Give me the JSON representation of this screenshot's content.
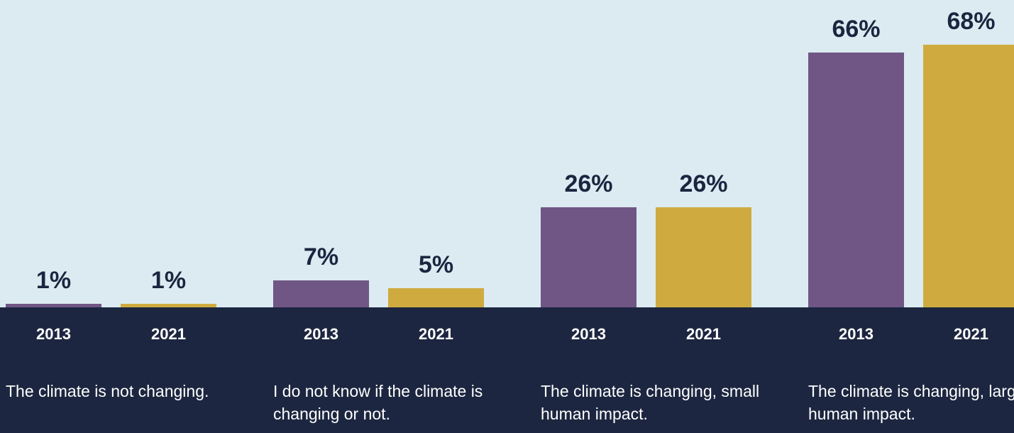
{
  "chart_data": {
    "type": "bar",
    "categories": [
      "The climate is not changing.",
      "I do not know if the climate is changing or not.",
      "The climate is changing, small human impact.",
      "The climate is changing, large human impact."
    ],
    "series": [
      {
        "name": "2013",
        "color": "#6f5685",
        "values": [
          1,
          7,
          26,
          66
        ],
        "value_labels": [
          "1%",
          "7%",
          "26%",
          "66%"
        ]
      },
      {
        "name": "2021",
        "color": "#cfab3f",
        "values": [
          1,
          5,
          26,
          68
        ],
        "value_labels": [
          "1%",
          "5%",
          "26%",
          "68%"
        ]
      }
    ]
  }
}
